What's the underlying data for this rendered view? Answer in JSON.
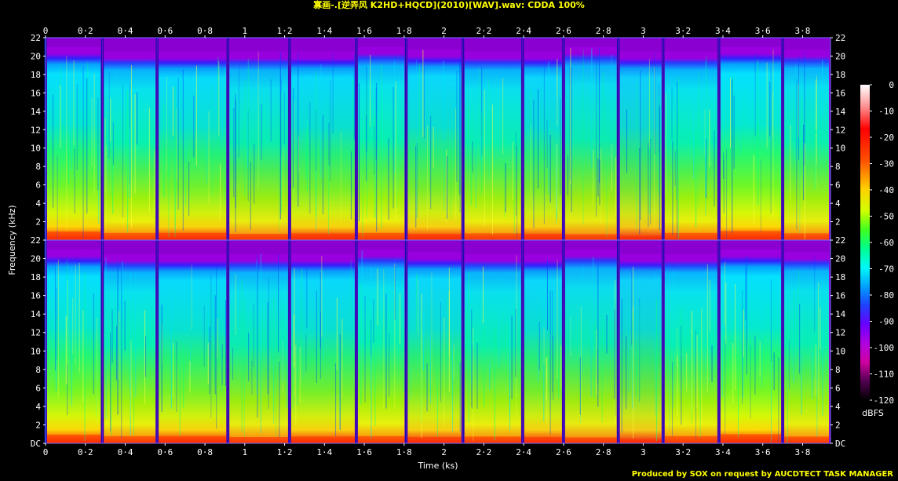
{
  "chart_data": {
    "type": "heatmap",
    "title": "寡画-.[逆弄风 K2HD+HQCD](2010)[WAV].wav: CDDA 100%",
    "xlabel": "Time (ks)",
    "ylabel": "Frequency (kHz)",
    "colorbar_label": "dBFS",
    "x_range": [
      0,
      3.94
    ],
    "y_range": [
      0,
      22
    ],
    "x_ticks": [
      "0",
      "0·2",
      "0·4",
      "0·6",
      "0·8",
      "1",
      "1·2",
      "1·4",
      "1·6",
      "1·8",
      "2",
      "2·2",
      "2·4",
      "2·6",
      "2·8",
      "3",
      "3·2",
      "3·4",
      "3·6",
      "3·8"
    ],
    "y_ticks": [
      "DC",
      "2",
      "4",
      "6",
      "8",
      "10",
      "12",
      "14",
      "16",
      "18",
      "20",
      "22"
    ],
    "colorbar_ticks": [
      "0",
      "-10",
      "-20",
      "-30",
      "-40",
      "-50",
      "-60",
      "-70",
      "-80",
      "-90",
      "-100",
      "-110",
      "-120"
    ],
    "colorbar_range": [
      -120,
      0
    ],
    "channels": [
      "left",
      "right"
    ],
    "track_boundaries_ks": [
      0,
      0.285,
      0.56,
      0.915,
      1.225,
      1.56,
      1.81,
      2.095,
      2.395,
      2.6,
      2.875,
      3.1,
      3.38,
      3.7,
      3.94
    ],
    "track_cutoff_khz": [
      21.0,
      20.5,
      20.5,
      20.5,
      20.5,
      21.0,
      20.7,
      20.5,
      20.5,
      21.0,
      20.5,
      20.5,
      21.0,
      20.7
    ],
    "track_loudness": [
      0.75,
      0.6,
      0.6,
      0.5,
      0.55,
      0.6,
      0.5,
      0.55,
      0.5,
      0.45,
      0.3,
      0.6,
      0.8,
      0.55
    ],
    "colors": [
      "#000000",
      "#40004a",
      "#7a0090",
      "#9a00d8",
      "#5b1cff",
      "#0050ff",
      "#00b8ff",
      "#00ffe0",
      "#00ff60",
      "#a0ff00",
      "#ffff00",
      "#ffb000",
      "#ff4000",
      "#ff0000",
      "#ff8080",
      "#ffffff"
    ]
  },
  "footer": "Produced by SOX on request by AUCDTECT TASK MANAGER"
}
